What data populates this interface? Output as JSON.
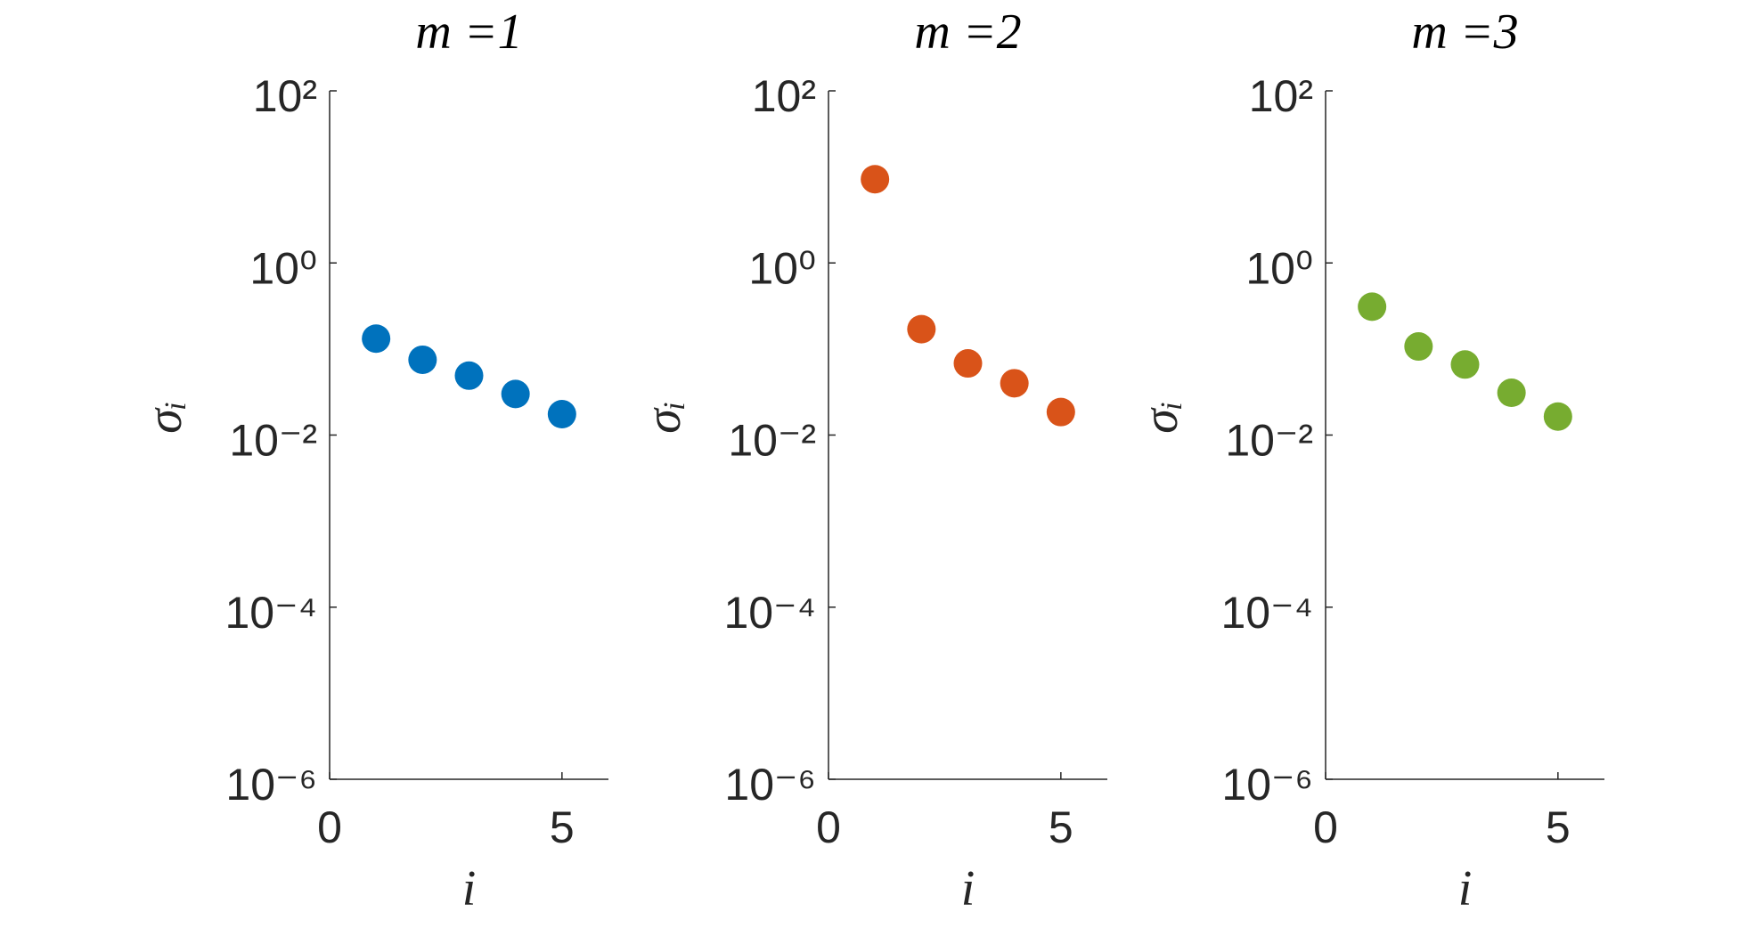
{
  "chart_data": [
    {
      "type": "scatter",
      "title": "m =1",
      "xlabel": "i",
      "ylabel": "σᵢ",
      "x": [
        1,
        2,
        3,
        4,
        5
      ],
      "values": [
        0.132,
        0.075,
        0.049,
        0.03,
        0.0175
      ],
      "color": "#0072bd",
      "log_y": true,
      "xlim": [
        0,
        6
      ],
      "xticks": [
        0,
        5
      ],
      "ylim": [
        1e-06,
        100
      ],
      "yticks": [
        {
          "value": 1e-06,
          "label": "10⁻⁶"
        },
        {
          "value": 0.0001,
          "label": "10⁻⁴"
        },
        {
          "value": 0.01,
          "label": "10⁻²"
        },
        {
          "value": 1,
          "label": "10⁰"
        },
        {
          "value": 100,
          "label": "10²"
        }
      ]
    },
    {
      "type": "scatter",
      "title": "m =2",
      "xlabel": "i",
      "ylabel": "σᵢ",
      "x": [
        1,
        2,
        3,
        4,
        5
      ],
      "values": [
        9.4,
        0.17,
        0.068,
        0.04,
        0.0185
      ],
      "color": "#d95319",
      "log_y": true,
      "xlim": [
        0,
        6
      ],
      "xticks": [
        0,
        5
      ],
      "ylim": [
        1e-06,
        100
      ],
      "yticks": [
        {
          "value": 1e-06,
          "label": "10⁻⁶"
        },
        {
          "value": 0.0001,
          "label": "10⁻⁴"
        },
        {
          "value": 0.01,
          "label": "10⁻²"
        },
        {
          "value": 1,
          "label": "10⁰"
        },
        {
          "value": 100,
          "label": "10²"
        }
      ]
    },
    {
      "type": "scatter",
      "title": "m =3",
      "xlabel": "i",
      "ylabel": "σᵢ",
      "x": [
        1,
        2,
        3,
        4,
        5
      ],
      "values": [
        0.31,
        0.107,
        0.066,
        0.031,
        0.0164
      ],
      "color": "#77ac30",
      "log_y": true,
      "xlim": [
        0,
        6
      ],
      "xticks": [
        0,
        5
      ],
      "ylim": [
        1e-06,
        100
      ],
      "yticks": [
        {
          "value": 1e-06,
          "label": "10⁻⁶"
        },
        {
          "value": 0.0001,
          "label": "10⁻⁴"
        },
        {
          "value": 0.01,
          "label": "10⁻²"
        },
        {
          "value": 1,
          "label": "10⁰"
        },
        {
          "value": 100,
          "label": "10²"
        }
      ]
    }
  ]
}
